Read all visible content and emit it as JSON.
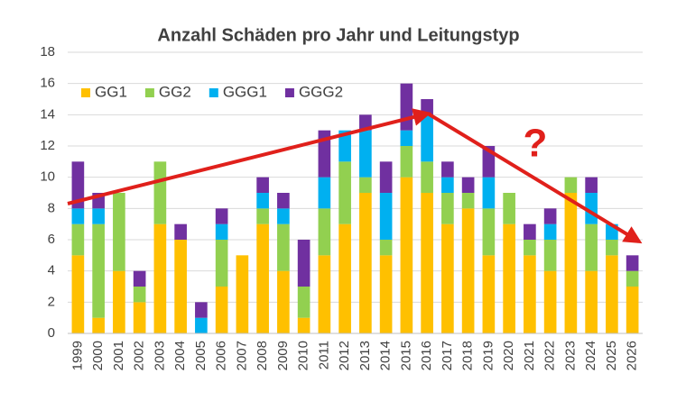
{
  "chart_data": {
    "type": "stacked_bar",
    "title": "Anzahl Schäden pro Jahr und Leitungstyp",
    "categories": [
      "1999",
      "2000",
      "2001",
      "2002",
      "2003",
      "2004",
      "2005",
      "2006",
      "2007",
      "2008",
      "2009",
      "2010",
      "2011",
      "2012",
      "2013",
      "2014",
      "2015",
      "2016",
      "2017",
      "2018",
      "2019",
      "2020",
      "2021",
      "2022",
      "2023",
      "2024",
      "2025",
      "2026"
    ],
    "series": [
      {
        "name": "GG1",
        "color": "#ffc000",
        "values": [
          5,
          1,
          4,
          2,
          7,
          6,
          0,
          3,
          5,
          7,
          4,
          1,
          5,
          7,
          9,
          5,
          10,
          9,
          7,
          8,
          5,
          7,
          5,
          4,
          9,
          4,
          5,
          3
        ]
      },
      {
        "name": "GG2",
        "color": "#92d050",
        "values": [
          2,
          6,
          5,
          1,
          4,
          0,
          0,
          3,
          0,
          1,
          3,
          2,
          3,
          4,
          1,
          1,
          2,
          2,
          2,
          1,
          3,
          2,
          1,
          2,
          1,
          3,
          1,
          1
        ]
      },
      {
        "name": "GGG1",
        "color": "#00b0f0",
        "values": [
          1,
          1,
          0,
          0,
          0,
          0,
          1,
          1,
          0,
          1,
          1,
          0,
          2,
          2,
          3,
          3,
          1,
          3,
          1,
          0,
          2,
          0,
          0,
          1,
          0,
          2,
          1,
          0
        ]
      },
      {
        "name": "GGG2",
        "color": "#7030a0",
        "values": [
          3,
          1,
          0,
          1,
          0,
          1,
          1,
          1,
          0,
          1,
          1,
          3,
          3,
          0,
          1,
          2,
          3,
          1,
          1,
          1,
          2,
          0,
          1,
          1,
          0,
          1,
          0,
          1
        ]
      }
    ],
    "ylim": [
      0,
      18
    ],
    "yticks": [
      0,
      2,
      4,
      6,
      8,
      10,
      12,
      14,
      16,
      18
    ],
    "grid": true,
    "legend": "top-left",
    "annotation": "?"
  }
}
